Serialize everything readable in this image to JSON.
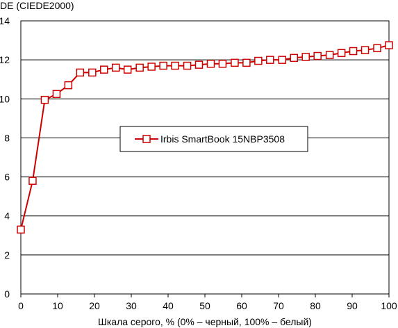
{
  "chart_data": {
    "type": "line",
    "ylabel": "DE (CIEDE2000)",
    "xlabel": "Шкала серого, % (0% – черный, 100% – белый)",
    "xlim": [
      0,
      100
    ],
    "ylim": [
      0,
      14
    ],
    "x_ticks": [
      "0",
      "10",
      "20",
      "30",
      "40",
      "50",
      "60",
      "70",
      "80",
      "90",
      "100"
    ],
    "y_ticks": [
      "0",
      "2",
      "4",
      "6",
      "8",
      "10",
      "12",
      "14"
    ],
    "grid": "horizontal",
    "legend_position": "center",
    "series": [
      {
        "name": "Irbis SmartBook 15NBP3508",
        "color": "#cc0000",
        "marker": "square",
        "x": [
          0,
          3.2,
          6.5,
          9.7,
          12.9,
          16.1,
          19.4,
          22.6,
          25.8,
          29,
          32.3,
          35.5,
          38.7,
          41.9,
          45.2,
          48.4,
          51.6,
          54.8,
          58.1,
          61.3,
          64.5,
          67.7,
          71,
          74.2,
          77.4,
          80.6,
          83.9,
          87.1,
          90.3,
          93.5,
          96.8,
          100
        ],
        "y": [
          3.3,
          5.8,
          9.95,
          10.25,
          10.7,
          11.35,
          11.35,
          11.5,
          11.6,
          11.5,
          11.6,
          11.65,
          11.7,
          11.7,
          11.7,
          11.75,
          11.8,
          11.8,
          11.85,
          11.85,
          11.95,
          12.0,
          12.0,
          12.1,
          12.15,
          12.2,
          12.25,
          12.35,
          12.45,
          12.5,
          12.6,
          12.75
        ]
      }
    ]
  }
}
